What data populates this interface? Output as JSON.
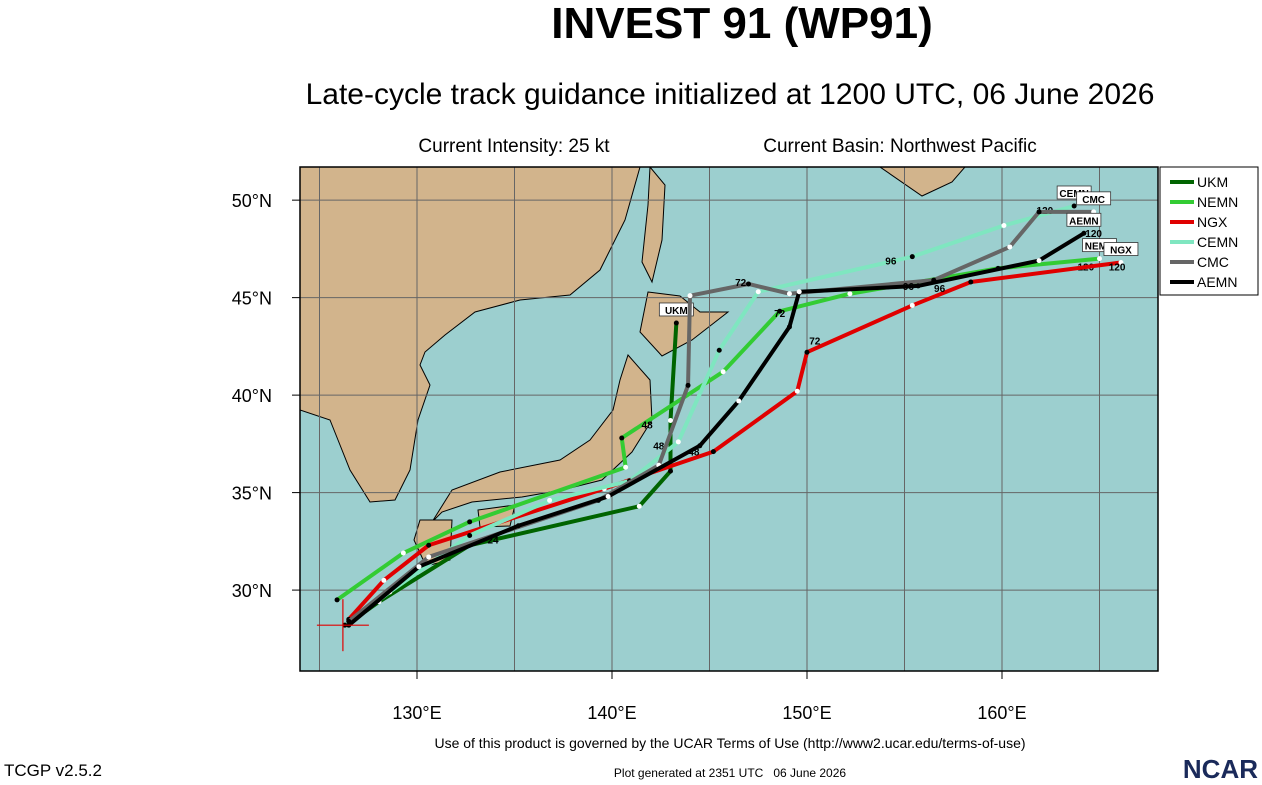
{
  "header": {
    "title": "INVEST 91 (WP91)",
    "subtitle": "Late-cycle track guidance initialized at 1200 UTC, 06 June 2026",
    "intensity": "Current Intensity: 25 kt",
    "basin": "Current Basin: Northwest Pacific"
  },
  "map": {
    "lonlim": [
      124,
      168
    ],
    "latlim": [
      25.85,
      51.7
    ],
    "lon_grid": [
      125,
      130,
      135,
      140,
      145,
      150,
      155,
      160,
      165
    ],
    "lat_grid": [
      30,
      35,
      40,
      45,
      50
    ],
    "lon_ticks": [
      {
        "value": 130,
        "label": "130°E"
      },
      {
        "value": 140,
        "label": "140°E"
      },
      {
        "value": 150,
        "label": "150°E"
      },
      {
        "value": 160,
        "label": "160°E"
      }
    ],
    "lat_ticks": [
      {
        "value": 30,
        "label": "30°N"
      },
      {
        "value": 35,
        "label": "35°N"
      },
      {
        "value": 40,
        "label": "40°N"
      },
      {
        "value": 45,
        "label": "45°N"
      },
      {
        "value": 50,
        "label": "50°N"
      }
    ],
    "current_position": {
      "lon": 126.2,
      "lat": 28.2,
      "color": "#e00000"
    }
  },
  "tracks": [
    {
      "name": "UKM",
      "color": "#006400",
      "lon": [
        126.5,
        128.05,
        132.7,
        141.4,
        143.0,
        143.0,
        143.3
      ],
      "lat": [
        28.3,
        29.4,
        32.3,
        34.3,
        36.1,
        38.7,
        43.7
      ],
      "end_label": "UKM",
      "hour_labels": [
        {
          "text": "24",
          "lon": 133.9,
          "lat": 32.4
        },
        {
          "text": "48",
          "lon": 142.4,
          "lat": 37.2
        }
      ]
    },
    {
      "name": "NEMN",
      "color": "#33cc33",
      "lon": [
        125.9,
        129.3,
        132.7,
        140.7,
        140.5,
        145.7,
        148.6,
        152.2,
        159.8,
        165.0
      ],
      "lat": [
        29.5,
        31.9,
        33.5,
        36.3,
        37.8,
        41.2,
        44.3,
        45.2,
        46.5,
        47.0
      ],
      "end_label": "NEMN",
      "hour_labels": [
        {
          "text": "48",
          "lon": 141.8,
          "lat": 38.3
        },
        {
          "text": "120",
          "lon": 164.3,
          "lat": 46.4
        }
      ]
    },
    {
      "name": "NGX",
      "color": "#e00000",
      "lon": [
        126.5,
        128.3,
        130.6,
        139.6,
        145.2,
        149.5,
        150.0,
        155.4,
        158.4,
        166.1
      ],
      "lat": [
        28.5,
        30.5,
        32.3,
        35.2,
        37.1,
        40.2,
        42.2,
        44.6,
        45.8,
        46.8
      ],
      "end_label": "NGX",
      "hour_labels": [
        {
          "text": "48",
          "lon": 144.2,
          "lat": 36.9
        },
        {
          "text": "72",
          "lon": 150.4,
          "lat": 42.6
        },
        {
          "text": "96",
          "lon": 156.8,
          "lat": 45.3
        },
        {
          "text": "120",
          "lon": 165.9,
          "lat": 46.4
        }
      ]
    },
    {
      "name": "CEMN",
      "color": "#7fe6c0",
      "lon": [
        126.3,
        128.6,
        132.7,
        136.8,
        140.9,
        143.4,
        145.5,
        147.5,
        155.4,
        160.1,
        163.7
      ],
      "lat": [
        28.2,
        29.9,
        32.8,
        34.6,
        35.6,
        37.6,
        42.3,
        45.3,
        47.1,
        48.7,
        49.7
      ],
      "end_label": "CEMN",
      "hour_labels": [
        {
          "text": "96",
          "lon": 154.3,
          "lat": 46.7
        },
        {
          "text": "120",
          "lon": 162.2,
          "lat": 49.3
        }
      ]
    },
    {
      "name": "CMC",
      "color": "#666666",
      "lon": [
        126.5,
        130.6,
        139.3,
        142.4,
        143.9,
        144.0,
        147.0,
        149.1,
        156.5,
        160.4,
        161.9,
        164.7
      ],
      "lat": [
        28.4,
        31.7,
        34.6,
        36.4,
        40.5,
        45.1,
        45.7,
        45.2,
        45.9,
        47.6,
        49.4,
        49.4
      ],
      "end_label": "CMC",
      "hour_labels": [
        {
          "text": "72",
          "lon": 146.6,
          "lat": 45.6
        },
        {
          "text": "96",
          "lon": 155.2,
          "lat": 45.4
        },
        {
          "text": "120",
          "lon": 164.1,
          "lat": 48.9
        }
      ]
    },
    {
      "name": "AEMN",
      "color": "#000000",
      "lon": [
        126.5,
        130.1,
        135.2,
        139.8,
        144.5,
        146.5,
        149.1,
        149.6,
        155.7,
        161.9,
        164.2
      ],
      "lat": [
        28.2,
        31.2,
        33.3,
        34.8,
        37.4,
        39.7,
        43.5,
        45.3,
        45.6,
        46.9,
        48.3
      ],
      "end_label": "AEMN",
      "hour_labels": [
        {
          "text": "72",
          "lon": 148.6,
          "lat": 44.0
        },
        {
          "text": "120",
          "lon": 164.7,
          "lat": 48.1
        }
      ]
    }
  ],
  "footer": {
    "terms": "Use of this product is governed by the UCAR Terms of Use (http://www2.ucar.edu/terms-of-use)",
    "version": "TCGP v2.5.2",
    "generated": "Plot generated at 2351 UTC   06 June 2026",
    "logo": "NCAR"
  }
}
